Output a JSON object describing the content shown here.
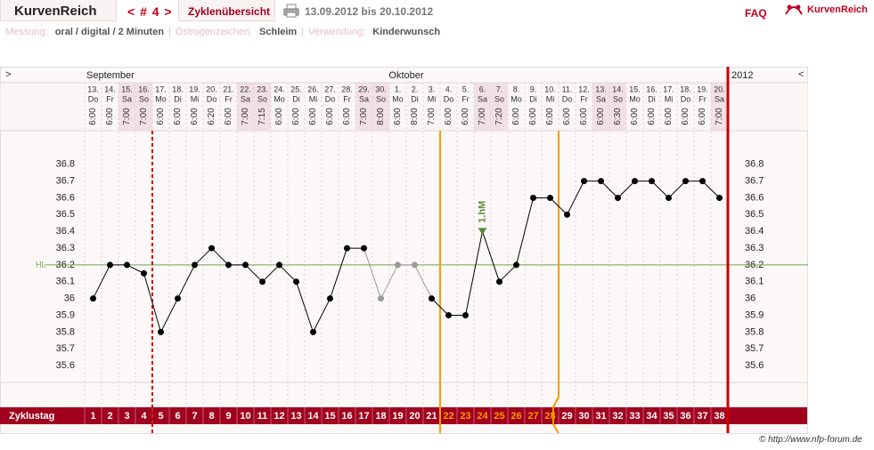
{
  "header": {
    "brand": "KurvenReich",
    "cycle_nav": "< # 4 >",
    "tab": "Zyklenübersicht",
    "period": "13.09.2012 bis 20.10.2012",
    "faq": "FAQ",
    "logo": "KurvenReich"
  },
  "settings_row": [
    {
      "label": "Messung:",
      "value": "oral / digital / 2 Minuten"
    },
    {
      "label": "Östrogenzeichen:",
      "value": "Schleim"
    },
    {
      "label": "Verwendung:",
      "value": "Kinderwunsch"
    }
  ],
  "footer": "© http://www.nfp-forum.de",
  "chart_data": {
    "type": "line",
    "year": "2012",
    "nav_left": ">",
    "nav_right": "<",
    "months": [
      "September",
      "Oktober"
    ],
    "dates": [
      "13.",
      "14.",
      "15.",
      "16.",
      "17.",
      "18.",
      "19.",
      "20.",
      "21.",
      "22.",
      "23.",
      "24.",
      "25.",
      "26.",
      "27.",
      "28.",
      "29.",
      "30.",
      "1.",
      "2.",
      "3.",
      "4.",
      "5.",
      "6.",
      "7.",
      "8.",
      "9.",
      "10.",
      "11.",
      "12.",
      "13.",
      "14.",
      "15.",
      "16.",
      "17.",
      "18.",
      "19.",
      "20."
    ],
    "weekdays": [
      "Do",
      "Fr",
      "Sa",
      "So",
      "Mo",
      "Di",
      "Mi",
      "Do",
      "Fr",
      "Sa",
      "So",
      "Mo",
      "Di",
      "Mi",
      "Do",
      "Fr",
      "Sa",
      "So",
      "Mo",
      "Di",
      "Mi",
      "Do",
      "Fr",
      "Sa",
      "So",
      "Mo",
      "Di",
      "Mi",
      "Do",
      "Fr",
      "Sa",
      "So",
      "Mo",
      "Di",
      "Mi",
      "Do",
      "Fr",
      "Sa"
    ],
    "times": [
      "6:00",
      "6:00",
      "7:00",
      "7:00",
      "6:00",
      "6:00",
      "6:00",
      "6:20",
      "6:00",
      "7:00",
      "7:15",
      "6:00",
      "6:00",
      "6:00",
      "6:00",
      "6:00",
      "7:00",
      "8:00",
      "6:00",
      "8:00",
      "7:00",
      "6:00",
      "6:00",
      "7:00",
      "7:20",
      "6:00",
      "6:00",
      "6:00",
      "6:00",
      "6:00",
      "6:00",
      "6:30",
      "6:00",
      "6:00",
      "6:00",
      "6:00",
      "6:00",
      "7:00"
    ],
    "row_label": "Zyklustag",
    "categories": [
      1,
      2,
      3,
      4,
      5,
      6,
      7,
      8,
      9,
      10,
      11,
      12,
      13,
      14,
      15,
      16,
      17,
      18,
      19,
      20,
      21,
      22,
      23,
      24,
      25,
      26,
      27,
      28,
      29,
      30,
      31,
      32,
      33,
      34,
      35,
      36,
      37,
      38
    ],
    "values": [
      36.0,
      36.2,
      36.2,
      36.15,
      35.8,
      36.0,
      36.2,
      36.3,
      36.2,
      36.2,
      36.1,
      36.2,
      36.1,
      35.8,
      36.0,
      36.3,
      36.3,
      36.0,
      36.2,
      36.2,
      36.0,
      35.9,
      35.9,
      36.4,
      36.1,
      36.2,
      36.6,
      36.6,
      36.5,
      36.7,
      36.7,
      36.6,
      36.7,
      36.7,
      36.6,
      36.7,
      36.7,
      36.6
    ],
    "color": "#000000",
    "excluded_days": [
      18,
      19,
      20
    ],
    "excluded_color": "#999999",
    "ylim": [
      35.5,
      37.0
    ],
    "yticks": [
      35.6,
      35.7,
      35.8,
      35.9,
      36,
      36.1,
      36.2,
      36.3,
      36.4,
      36.5,
      36.6,
      36.7,
      36.8
    ],
    "hl": {
      "label": "HL",
      "value": 36.2,
      "color": "#6aa84f"
    },
    "peak_marker": {
      "day": 24,
      "label": "1.hM",
      "color": "#5e8c3a"
    },
    "fertile_window": [
      22,
      28
    ],
    "fertile_color": "#ff9900",
    "dashed_line_after_day": 4,
    "dashed_line_color": "#cc0000"
  }
}
